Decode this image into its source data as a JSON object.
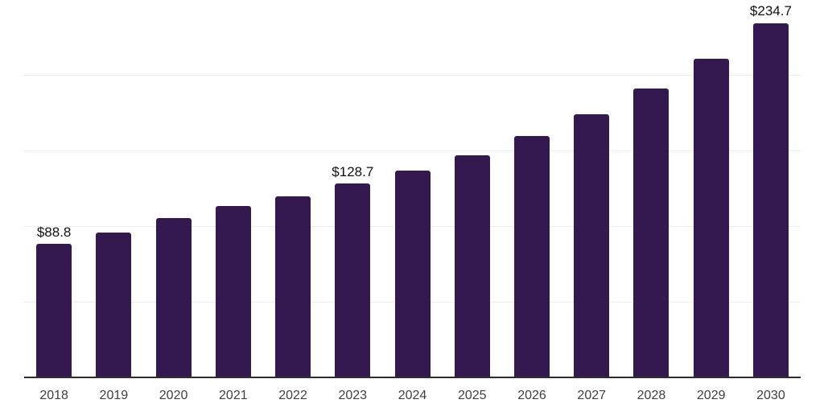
{
  "chart_data": {
    "type": "bar",
    "title": "",
    "xlabel": "",
    "ylabel": "",
    "categories": [
      "2018",
      "2019",
      "2020",
      "2021",
      "2022",
      "2023",
      "2024",
      "2025",
      "2026",
      "2027",
      "2028",
      "2029",
      "2030"
    ],
    "values": [
      88.8,
      96.4,
      106.1,
      113.6,
      120.0,
      128.7,
      137.5,
      147.1,
      160.2,
      174.7,
      191.6,
      211.1,
      234.7
    ],
    "data_labels": [
      "$88.8",
      "",
      "",
      "",
      "",
      "$128.7",
      "",
      "",
      "",
      "",
      "",
      "",
      "$234.7"
    ],
    "ylim": [
      0,
      250
    ],
    "ytick_step": 50,
    "y_axis_labels_visible": false,
    "grid": "horizontal",
    "legend": "none",
    "colors": {
      "bar": "#33194f",
      "gridline": "#ededed",
      "axis_line": "#2e2e2e",
      "value_label": "#111111",
      "tick_label": "#404040",
      "background": "#ffffff"
    }
  }
}
